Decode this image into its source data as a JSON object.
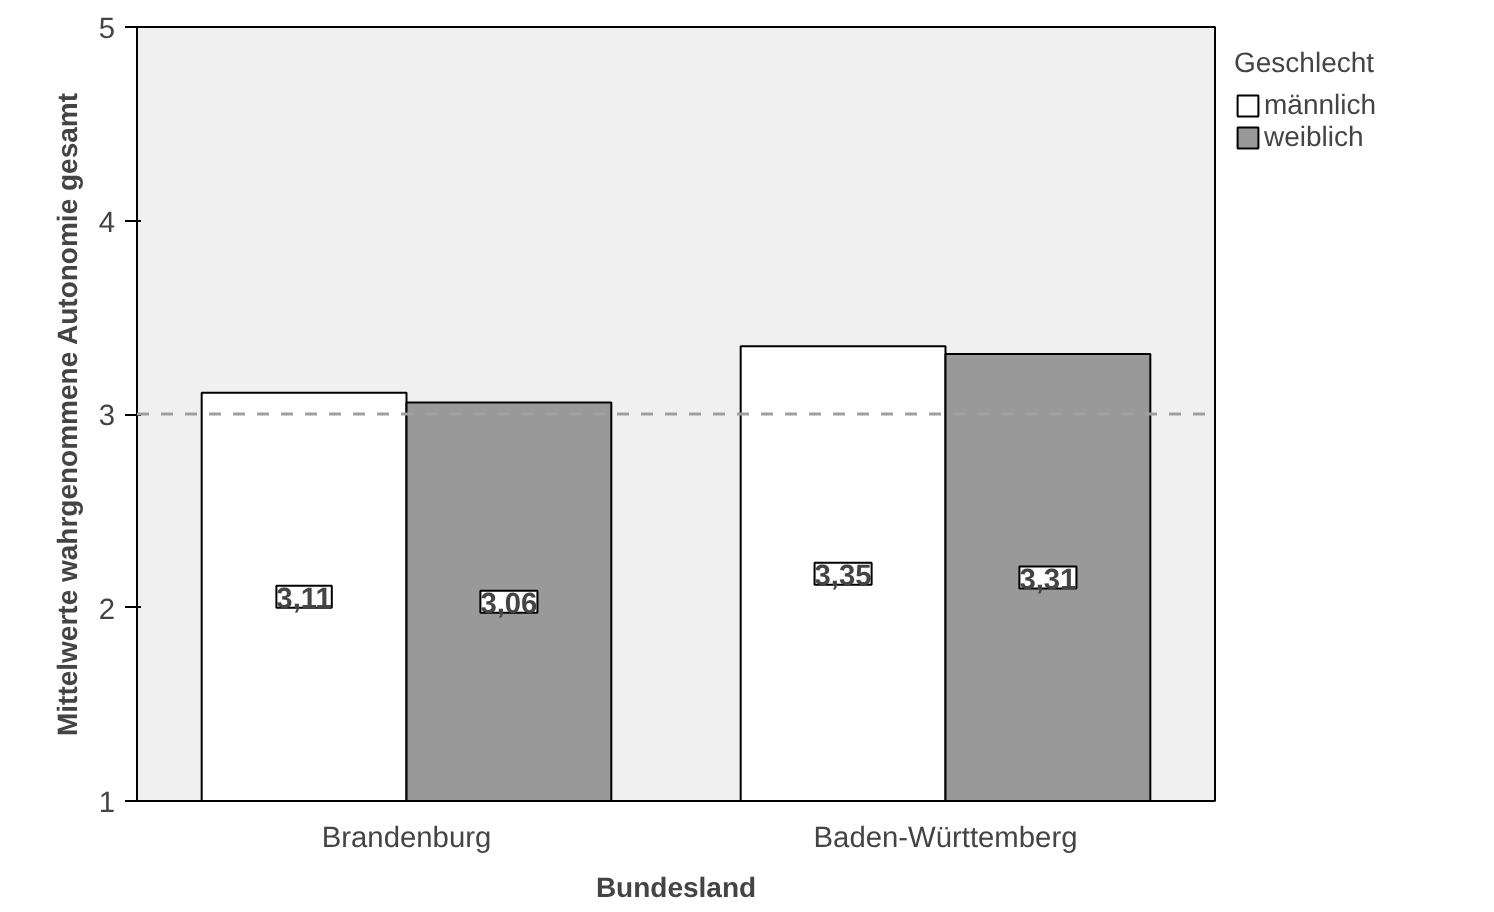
{
  "chart_data": {
    "type": "bar",
    "xlabel": "Bundesland",
    "ylabel": "Mittelwerte wahrgenommene Autonomie gesamt",
    "legend_title": "Geschlecht",
    "categories": [
      "Brandenburg",
      "Baden-Württemberg"
    ],
    "series": [
      {
        "name": "männlich",
        "color": "#ffffff",
        "values": [
          3.11,
          3.35
        ],
        "value_labels": [
          "3,11",
          "3,35"
        ]
      },
      {
        "name": "weiblich",
        "color": "#999999",
        "values": [
          3.06,
          3.31
        ],
        "value_labels": [
          "3,06",
          "3,31"
        ]
      }
    ],
    "ylim": [
      1,
      5
    ],
    "yticks": [
      1,
      2,
      3,
      4,
      5
    ],
    "grid": false,
    "legend": "top right",
    "ref_lines": [
      {
        "axis": "y",
        "value": 3,
        "color": "#a0a0a0",
        "line_style": "dashed"
      }
    ]
  }
}
